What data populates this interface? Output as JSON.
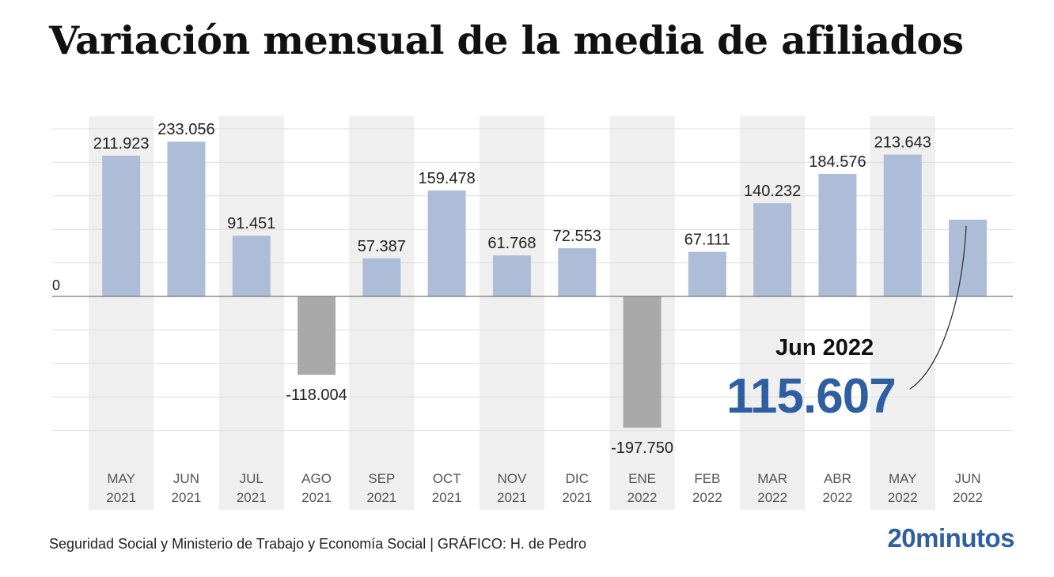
{
  "title": "Variación mensual de la media de afiliados",
  "source": "Seguridad Social y Ministerio de Trabajo y Economía Social  |  GRÁFICO: H. de Pedro",
  "brand": "20minutos",
  "colors": {
    "positive_bar": "#adbdd8",
    "negative_bar": "#a9a9a9",
    "band": "#efefef",
    "callout_value": "#2f5fa0"
  },
  "callout": {
    "label": "Jun 2022",
    "value": "115.607"
  },
  "chart_data": {
    "type": "bar",
    "title": "Variación mensual de la media de afiliados",
    "categories": [
      [
        "MAY",
        "2021"
      ],
      [
        "JUN",
        "2021"
      ],
      [
        "JUL",
        "2021"
      ],
      [
        "AGO",
        "2021"
      ],
      [
        "SEP",
        "2021"
      ],
      [
        "OCT",
        "2021"
      ],
      [
        "NOV",
        "2021"
      ],
      [
        "DIC",
        "2021"
      ],
      [
        "ENE",
        "2022"
      ],
      [
        "FEB",
        "2022"
      ],
      [
        "MAR",
        "2022"
      ],
      [
        "ABR",
        "2022"
      ],
      [
        "MAY",
        "2022"
      ],
      [
        "JUN",
        "2022"
      ]
    ],
    "values": [
      211923,
      233056,
      91451,
      -118004,
      57387,
      159478,
      61768,
      72553,
      -197750,
      67111,
      140232,
      184576,
      213643,
      115607
    ],
    "value_labels": [
      "211.923",
      "233.056",
      "91.451",
      "-118.004",
      "57.387",
      "159.478",
      "61.768",
      "72.553",
      "-197.750",
      "67.111",
      "140.232",
      "184.576",
      "213.643",
      ""
    ],
    "zero_label": "0",
    "ylim": [
      -200000,
      250000
    ],
    "grid": true,
    "alternating_bands": true
  }
}
